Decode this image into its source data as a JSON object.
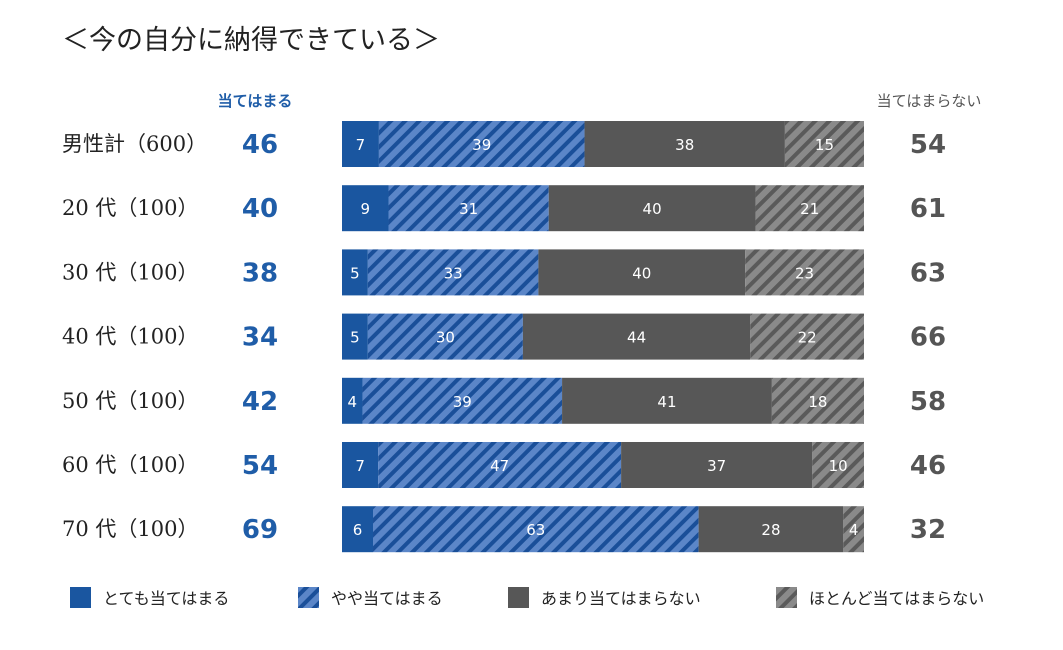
{
  "title": "＜今の自分に納得できている＞",
  "header_left": "当てはまる",
  "header_right": "当てはまらない",
  "colors": {
    "very_agree": "#1a56a0",
    "somewhat_agree": "#5b86c8",
    "somewhat_agree_stripe": "#1a4f99",
    "somewhat_disagree": "#575757",
    "disagree": "#8a8a8a",
    "disagree_stripe": "#5a5a5a",
    "agree_total": "#1f5da8",
    "disagree_total": "#555555"
  },
  "chart_data": {
    "type": "stacked-bar-horizontal",
    "title": "＜今の自分に納得できている＞",
    "categories": [
      "男性計（600）",
      "20 代（100）",
      "30 代（100）",
      "40 代（100）",
      "50 代（100）",
      "60 代（100）",
      "70 代（100）"
    ],
    "series": [
      {
        "name": "とても当てはまる",
        "values": [
          7,
          9,
          5,
          5,
          4,
          7,
          6
        ]
      },
      {
        "name": "やや当てはまる",
        "values": [
          39,
          31,
          33,
          30,
          39,
          47,
          63
        ]
      },
      {
        "name": "あまり当てはまらない",
        "values": [
          38,
          40,
          40,
          44,
          41,
          37,
          28
        ]
      },
      {
        "name": "ほとんど当てはまらない",
        "values": [
          15,
          21,
          23,
          22,
          18,
          10,
          4
        ]
      }
    ],
    "agree_totals": [
      46,
      40,
      38,
      34,
      42,
      54,
      69
    ],
    "disagree_totals": [
      54,
      61,
      63,
      66,
      58,
      46,
      32
    ],
    "legend_position": "bottom"
  }
}
